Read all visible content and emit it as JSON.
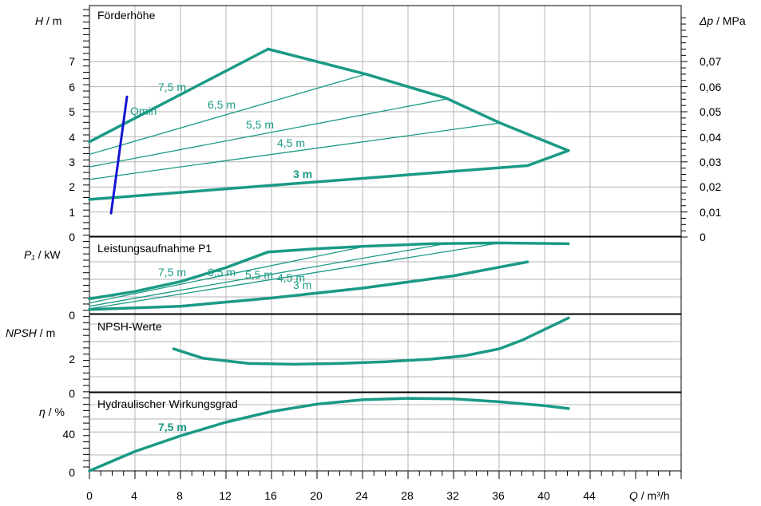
{
  "colors": {
    "curve": "#1a9a85",
    "qmin": "#1414d2",
    "grid": "#b4b4b4",
    "axis": "#000000"
  },
  "x_axis": {
    "label_italic": "Q",
    "label_rest": " / m³/h",
    "ticks": [
      "0",
      "4",
      "8",
      "12",
      "16",
      "20",
      "24",
      "28",
      "32",
      "36",
      "40",
      "44"
    ]
  },
  "panel_head": {
    "title": "Förderhöhe",
    "ylabel_italic": "H",
    "ylabel_rest": "  / m",
    "yticks": [
      "0",
      "1",
      "2",
      "3",
      "4",
      "5",
      "6",
      "7"
    ],
    "right_label_italic": "Δp",
    "right_label_rest": " / MPa",
    "right_ticks": [
      "0",
      "0,01",
      "0,02",
      "0,03",
      "0,04",
      "0,05",
      "0,06",
      "0,07"
    ],
    "speed_labels": [
      "7,5 m",
      "6,5 m",
      "5,5 m",
      "4,5 m",
      "3 m"
    ],
    "qmin_label": "Qmin"
  },
  "panel_power": {
    "title": "Leistungsaufnahme P1",
    "ylabel_italic": "P₁",
    "ylabel_rest": " / kW",
    "yticks": [
      "0"
    ],
    "speed_labels": [
      "7,5 m",
      "6,5 m",
      "5,5 m",
      "4,5 m",
      "3 m"
    ]
  },
  "panel_npsh": {
    "title": "NPSH-Werte",
    "ylabel_italic": "NPSH",
    "ylabel_rest": "  / m",
    "yticks": [
      "0",
      "2"
    ]
  },
  "panel_eff": {
    "title": "Hydraulischer Wirkungsgrad",
    "ylabel_italic": "η",
    "ylabel_rest": " / %",
    "yticks": [
      "0",
      "40"
    ],
    "speed_label": "7,5 m"
  },
  "chart_data": [
    {
      "type": "line",
      "title": "Förderhöhe",
      "xlabel": "Q / m³/h",
      "ylabel": "H / m",
      "ylabel_right": "Δp / MPa",
      "xlim": [
        0,
        46
      ],
      "ylim": [
        0,
        8.4
      ],
      "grid": true,
      "series": [
        {
          "name": "7,5 m",
          "x": [
            0,
            15.7
          ],
          "y": [
            3.8,
            7.5
          ]
        },
        {
          "name": "6,5 m",
          "x": [
            0,
            24.3
          ],
          "y": [
            3.3,
            6.5
          ]
        },
        {
          "name": "5,5 m",
          "x": [
            0,
            31.3
          ],
          "y": [
            2.8,
            5.5
          ]
        },
        {
          "name": "4,5 m",
          "x": [
            0,
            36.1
          ],
          "y": [
            2.3,
            4.55
          ]
        },
        {
          "name": "3 m",
          "x": [
            0,
            38.5,
            42.1
          ],
          "y": [
            1.5,
            2.85,
            3.45
          ]
        },
        {
          "name": "",
          "x": [
            15.7,
            24.3,
            31.3,
            36.1,
            42.1
          ],
          "y": [
            7.5,
            6.5,
            5.55,
            4.55,
            3.45
          ]
        },
        {
          "name": "Qmin",
          "x": [
            1.9,
            3.3
          ],
          "y": [
            0.95,
            5.6
          ]
        }
      ]
    },
    {
      "type": "line",
      "title": "Leistungsaufnahme P1",
      "xlabel": "Q / m³/h",
      "ylabel": "P₁ / kW",
      "xlim": [
        0,
        46
      ],
      "grid": true,
      "series": [
        {
          "name": "7,5 m",
          "x": [
            0,
            4,
            8,
            12,
            15.7,
            20,
            24.3,
            30,
            36,
            42.1
          ],
          "y": [
            0.19,
            0.28,
            0.4,
            0.57,
            0.76,
            0.8,
            0.83,
            0.86,
            0.87,
            0.86
          ]
        },
        {
          "name": "6,5 m",
          "x": [
            0,
            24.3
          ],
          "y": [
            0.14,
            0.83
          ]
        },
        {
          "name": "5,5 m",
          "x": [
            0,
            31.3
          ],
          "y": [
            0.1,
            0.86
          ]
        },
        {
          "name": "4,5 m",
          "x": [
            0,
            36.1
          ],
          "y": [
            0.07,
            0.87
          ]
        },
        {
          "name": "3 m",
          "x": [
            0,
            8,
            16,
            24,
            32,
            38.5
          ],
          "y": [
            0.06,
            0.1,
            0.2,
            0.32,
            0.47,
            0.64
          ]
        }
      ]
    },
    {
      "type": "line",
      "title": "NPSH-Werte",
      "xlabel": "Q / m³/h",
      "ylabel": "NPSH / m",
      "xlim": [
        0,
        46
      ],
      "grid": true,
      "series": [
        {
          "name": "",
          "x": [
            7.4,
            10,
            14,
            18,
            22,
            26,
            30,
            33,
            36,
            38,
            42.1
          ],
          "y": [
            2.6,
            2.05,
            1.75,
            1.7,
            1.75,
            1.85,
            2.0,
            2.2,
            2.6,
            3.1,
            4.4
          ]
        }
      ]
    },
    {
      "type": "line",
      "title": "Hydraulischer Wirkungsgrad",
      "xlabel": "Q / m³/h",
      "ylabel": "η / %",
      "xlim": [
        0,
        46
      ],
      "grid": true,
      "series": [
        {
          "name": "7,5 m",
          "x": [
            0,
            4,
            8,
            12,
            16,
            20,
            24,
            28,
            32,
            36,
            40,
            42.1
          ],
          "y": [
            0,
            20,
            36,
            50,
            61,
            68.5,
            73,
            74.5,
            74,
            71,
            67,
            64
          ]
        }
      ]
    }
  ]
}
